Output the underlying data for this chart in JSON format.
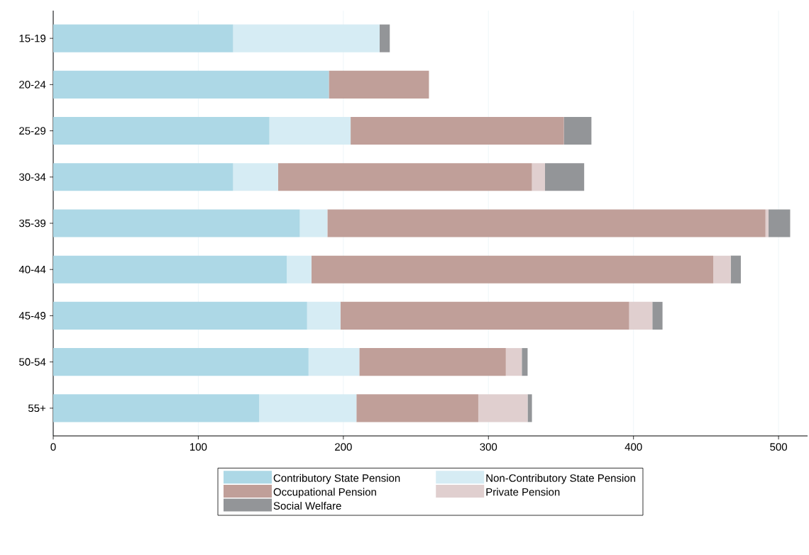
{
  "chart_data": {
    "type": "bar",
    "orientation": "horizontal",
    "stacked": true,
    "categories": [
      "15-19",
      "20-24",
      "25-29",
      "30-34",
      "35-39",
      "40-44",
      "45-49",
      "50-54",
      "55+"
    ],
    "series": [
      {
        "name": "Contributory State Pension",
        "color": "#add8e6",
        "values": [
          124,
          190,
          149,
          124,
          170,
          161,
          175,
          176,
          142
        ]
      },
      {
        "name": "Non-Contributory State Pension",
        "color": "#d6ecf4",
        "values": [
          101,
          0,
          56,
          31,
          19,
          17,
          23,
          35,
          67
        ]
      },
      {
        "name": "Occupational Pension",
        "color": "#c09f99",
        "values": [
          0,
          69,
          147,
          175,
          302,
          277,
          199,
          101,
          84
        ]
      },
      {
        "name": "Private Pension",
        "color": "#e0cfcf",
        "values": [
          0,
          0,
          0,
          9,
          2,
          12,
          16,
          11,
          34
        ]
      },
      {
        "name": "Social Welfare",
        "color": "#939598",
        "values": [
          7,
          0,
          19,
          27,
          15,
          7,
          7,
          4,
          3
        ]
      }
    ],
    "xlim": [
      0,
      520
    ],
    "xticks": [
      0,
      100,
      200,
      300,
      400,
      500
    ],
    "grid": "x",
    "legend": "bottom"
  }
}
